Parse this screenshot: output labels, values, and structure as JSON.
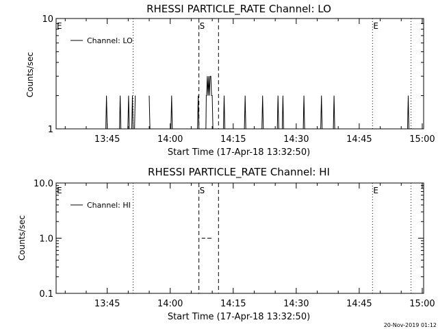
{
  "footer_stamp": "20-Nov-2019 01:12",
  "chart_data": [
    {
      "type": "line",
      "title": "RHESSI PARTICLE_RATE Channel: LO",
      "xlabel": "Start Time (17-Apr-18 13:32:50)",
      "ylabel": "Counts/sec",
      "yscale": "log",
      "ylim": [
        1,
        10
      ],
      "ytick_values": [
        1,
        10
      ],
      "ytick_labels": [
        "1",
        "10"
      ],
      "xlim_seconds_from_start": [
        0,
        5250
      ],
      "xtick_labels": [
        "13:45",
        "14:00",
        "14:15",
        "14:30",
        "14:45",
        "15:00"
      ],
      "legend": {
        "location": "top-left",
        "entries": [
          "Channel: LO"
        ]
      },
      "series": [
        {
          "name": "Channel: LO",
          "x_seconds_from_start": [
            710,
            720,
            730,
            905,
            915,
            925,
            1025,
            1035,
            1045,
            1080,
            1090,
            1100,
            1120,
            1130,
            1330,
            1340,
            1640,
            1650,
            1660,
            2020,
            2030,
            2040,
            2140,
            2145,
            2150,
            2160,
            2170,
            2180,
            2190,
            2200,
            2210,
            2220,
            2230,
            2240,
            2250,
            2390,
            2400,
            2410,
            2690,
            2700,
            2710,
            2940,
            2950,
            2960,
            3160,
            3170,
            3180,
            3230,
            3240,
            3250,
            3530,
            3540,
            3550,
            3780,
            3790,
            3800,
            3960,
            3970,
            3980,
            5020,
            5030,
            5040
          ],
          "values": [
            1,
            2,
            1,
            1,
            2,
            1,
            1,
            2,
            1,
            1,
            2,
            1,
            1,
            2,
            2,
            1,
            1,
            2,
            1,
            1,
            2,
            1,
            1,
            2,
            2,
            3,
            2,
            3,
            2,
            3,
            3,
            2,
            2,
            1,
            1,
            1,
            2,
            1,
            1,
            2,
            1,
            1,
            2,
            1,
            1,
            2,
            1,
            1,
            2,
            1,
            1,
            2,
            1,
            1,
            2,
            1,
            1,
            2,
            1,
            1,
            2,
            1
          ]
        }
      ],
      "markers": [
        {
          "label": "E",
          "x_seconds_from_start": 0,
          "style": "none"
        },
        {
          "label": "",
          "x_seconds_from_start": 1100,
          "style": "dotted"
        },
        {
          "label": "S",
          "x_seconds_from_start": 2040,
          "style": "dashed"
        },
        {
          "label": "",
          "x_seconds_from_start": 2320,
          "style": "dashed"
        },
        {
          "label": "E",
          "x_seconds_from_start": 4520,
          "style": "dotted"
        },
        {
          "label": "",
          "x_seconds_from_start": 5070,
          "style": "dotted"
        }
      ]
    },
    {
      "type": "line",
      "title": "RHESSI PARTICLE_RATE Channel: HI",
      "xlabel": "Start Time (17-Apr-18 13:32:50)",
      "ylabel": "Counts/sec",
      "yscale": "log",
      "ylim": [
        0.1,
        10
      ],
      "ytick_values": [
        0.1,
        1,
        10
      ],
      "ytick_labels": [
        "0.1",
        "1.0",
        "10.0"
      ],
      "xlim_seconds_from_start": [
        0,
        5250
      ],
      "xtick_labels": [
        "13:45",
        "14:00",
        "14:15",
        "14:30",
        "14:45",
        "15:00"
      ],
      "legend": {
        "location": "top-left",
        "entries": [
          "Channel: HI"
        ]
      },
      "series": [
        {
          "name": "Channel: HI",
          "x_seconds_from_start": [
            2080,
            2130,
            2160,
            2220
          ],
          "values": [
            1,
            1,
            1,
            1
          ],
          "segments": [
            [
              0,
              1
            ],
            [
              2,
              3
            ]
          ]
        }
      ],
      "markers": [
        {
          "label": "E",
          "x_seconds_from_start": 0,
          "style": "none"
        },
        {
          "label": "",
          "x_seconds_from_start": 1100,
          "style": "dotted"
        },
        {
          "label": "S",
          "x_seconds_from_start": 2040,
          "style": "dashed"
        },
        {
          "label": "",
          "x_seconds_from_start": 2320,
          "style": "dashed"
        },
        {
          "label": "E",
          "x_seconds_from_start": 4520,
          "style": "dotted"
        },
        {
          "label": "",
          "x_seconds_from_start": 5070,
          "style": "dotted"
        }
      ]
    }
  ]
}
